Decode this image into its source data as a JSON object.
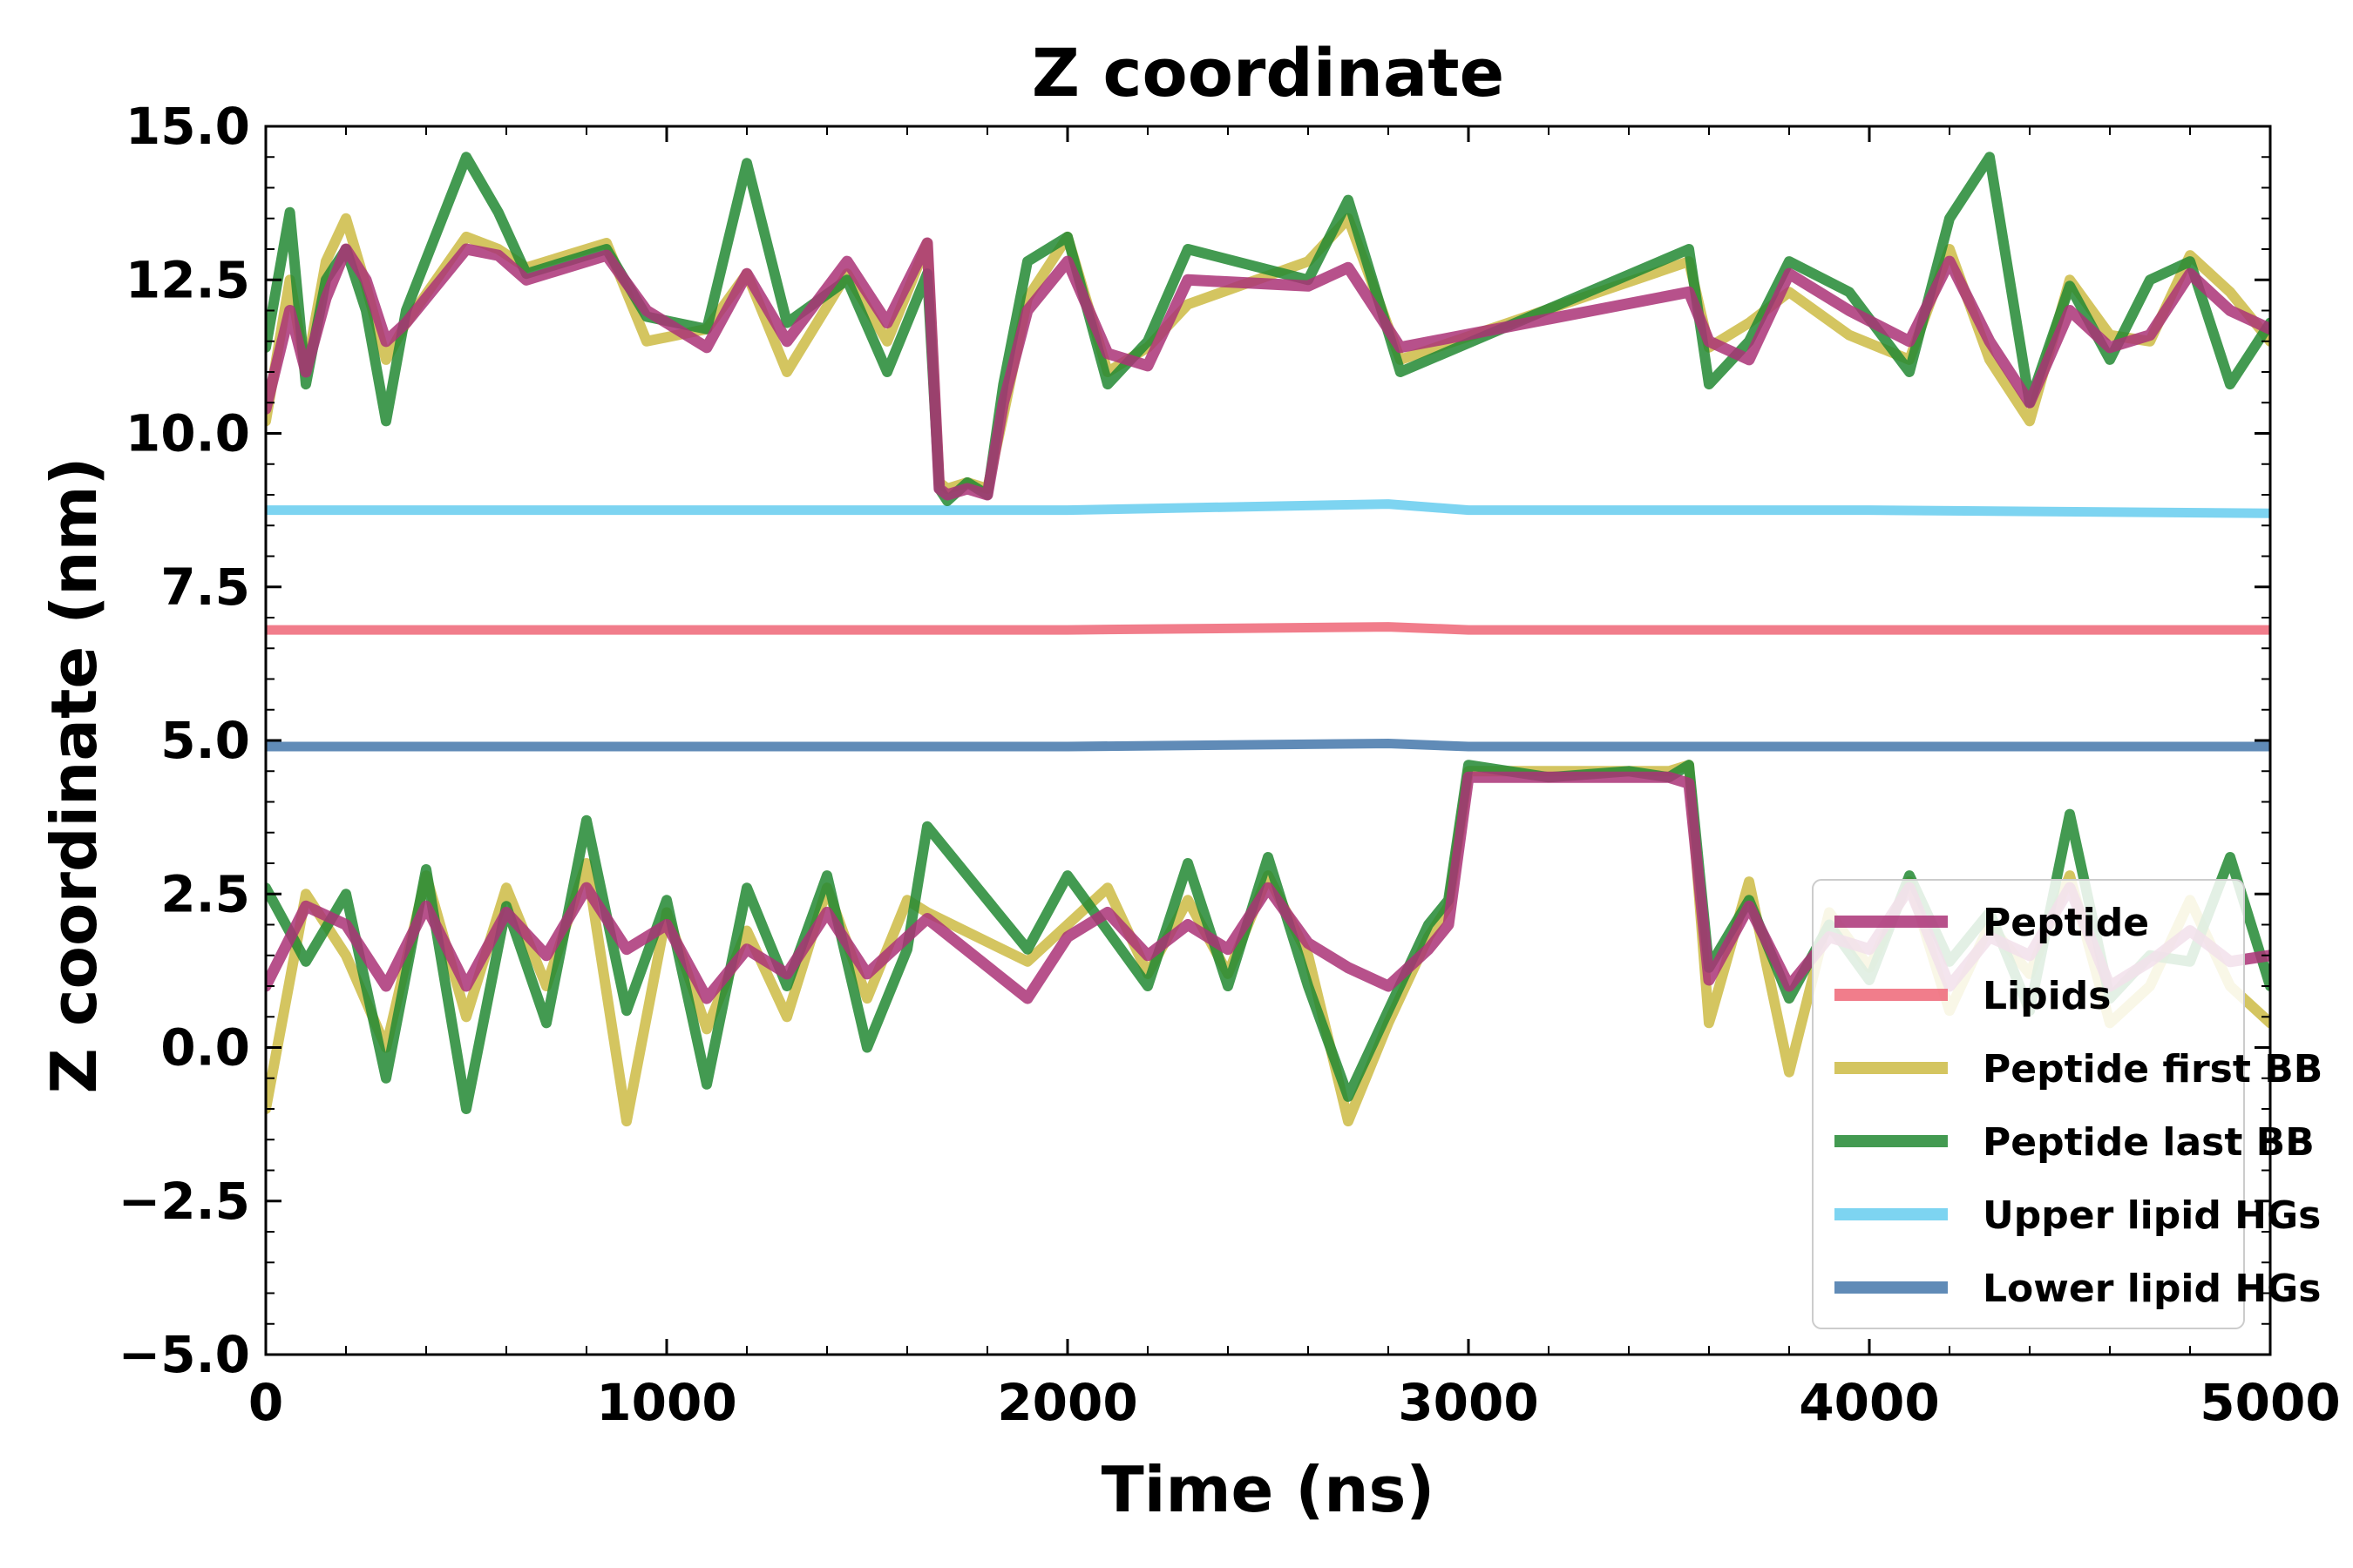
{
  "chart_data": {
    "type": "line",
    "title": "Z coordinate",
    "xlabel": "Time (ns)",
    "ylabel": "Z coordinate (nm)",
    "xlim": [
      0,
      5000
    ],
    "ylim": [
      -5.0,
      15.0
    ],
    "x_ticks": [
      0,
      1000,
      2000,
      3000,
      4000,
      5000
    ],
    "x_tick_labels": [
      "0",
      "1000",
      "2000",
      "3000",
      "4000",
      "5000"
    ],
    "y_ticks": [
      -5.0,
      -2.5,
      0.0,
      2.5,
      5.0,
      7.5,
      10.0,
      12.5,
      15.0
    ],
    "y_tick_labels": [
      "−5.0",
      "−2.5",
      "0.0",
      "2.5",
      "5.0",
      "7.5",
      "10.0",
      "12.5",
      "15.0"
    ],
    "grid": false,
    "legend_position": "lower-right",
    "series": [
      {
        "name": "Peptide",
        "color": "#aa3377",
        "points": [
          [
            0,
            10.4
          ],
          [
            60,
            12.0
          ],
          [
            100,
            11.0
          ],
          [
            150,
            12.2
          ],
          [
            200,
            13.0
          ],
          [
            250,
            12.5
          ],
          [
            300,
            11.5
          ],
          [
            350,
            11.8
          ],
          [
            500,
            13.0
          ],
          [
            580,
            12.9
          ],
          [
            650,
            12.5
          ],
          [
            850,
            12.9
          ],
          [
            950,
            12.0
          ],
          [
            1100,
            11.4
          ],
          [
            1200,
            12.6
          ],
          [
            1300,
            11.5
          ],
          [
            1450,
            12.8
          ],
          [
            1550,
            11.8
          ],
          [
            1650,
            13.1
          ],
          [
            1680,
            9.1
          ],
          [
            1700,
            9.0
          ],
          [
            1750,
            9.1
          ],
          [
            1800,
            9.0
          ],
          [
            1840,
            10.5
          ],
          [
            1900,
            12.0
          ],
          [
            2000,
            12.8
          ],
          [
            2100,
            11.3
          ],
          [
            2200,
            11.1
          ],
          [
            2300,
            12.5
          ],
          [
            2600,
            12.4
          ],
          [
            2700,
            12.7
          ],
          [
            2830,
            11.4
          ],
          [
            3550,
            12.3
          ],
          [
            3600,
            11.5
          ],
          [
            3700,
            11.2
          ],
          [
            3800,
            12.6
          ],
          [
            3950,
            12.0
          ],
          [
            4100,
            11.5
          ],
          [
            4200,
            12.8
          ],
          [
            4300,
            11.5
          ],
          [
            4400,
            10.5
          ],
          [
            4500,
            12.0
          ],
          [
            4600,
            11.4
          ],
          [
            4700,
            11.6
          ],
          [
            4800,
            12.6
          ],
          [
            4900,
            12.0
          ],
          [
            5000,
            11.7
          ]
        ],
        "points_lower": [
          [
            0,
            1.0
          ],
          [
            100,
            2.3
          ],
          [
            200,
            2.0
          ],
          [
            300,
            1.0
          ],
          [
            400,
            2.3
          ],
          [
            500,
            1.0
          ],
          [
            600,
            2.2
          ],
          [
            700,
            1.5
          ],
          [
            800,
            2.6
          ],
          [
            900,
            1.6
          ],
          [
            1000,
            2.0
          ],
          [
            1100,
            0.8
          ],
          [
            1200,
            1.6
          ],
          [
            1300,
            1.2
          ],
          [
            1400,
            2.2
          ],
          [
            1500,
            1.2
          ],
          [
            1600,
            1.8
          ],
          [
            1650,
            2.1
          ],
          [
            1900,
            0.8
          ],
          [
            2000,
            1.8
          ],
          [
            2100,
            2.2
          ],
          [
            2200,
            1.5
          ],
          [
            2300,
            2.0
          ],
          [
            2400,
            1.6
          ],
          [
            2500,
            2.6
          ],
          [
            2600,
            1.7
          ],
          [
            2700,
            1.3
          ],
          [
            2800,
            1.0
          ],
          [
            2900,
            1.6
          ],
          [
            2950,
            2.0
          ],
          [
            3000,
            4.4
          ],
          [
            3200,
            4.4
          ],
          [
            3400,
            4.4
          ],
          [
            3500,
            4.4
          ],
          [
            3550,
            4.3
          ],
          [
            3600,
            1.1
          ],
          [
            3700,
            2.3
          ],
          [
            3800,
            1.0
          ],
          [
            3900,
            1.8
          ],
          [
            4000,
            1.6
          ],
          [
            4100,
            2.6
          ],
          [
            4200,
            1.0
          ],
          [
            4300,
            1.8
          ],
          [
            4400,
            1.5
          ],
          [
            4500,
            2.6
          ],
          [
            4600,
            1.0
          ],
          [
            4700,
            1.4
          ],
          [
            4800,
            1.9
          ],
          [
            4900,
            1.4
          ],
          [
            5000,
            1.5
          ]
        ]
      },
      {
        "name": "Lipids",
        "color": "#ee6677",
        "points": [
          [
            0,
            6.8
          ],
          [
            1000,
            6.8
          ],
          [
            2000,
            6.8
          ],
          [
            2800,
            6.85
          ],
          [
            3000,
            6.8
          ],
          [
            4000,
            6.8
          ],
          [
            5000,
            6.8
          ]
        ]
      },
      {
        "name": "Peptide first BB",
        "color": "#ccbb44",
        "points": [
          [
            0,
            10.2
          ],
          [
            60,
            12.5
          ],
          [
            100,
            11.0
          ],
          [
            150,
            12.8
          ],
          [
            200,
            13.5
          ],
          [
            250,
            12.4
          ],
          [
            300,
            11.2
          ],
          [
            350,
            11.8
          ],
          [
            500,
            13.2
          ],
          [
            580,
            13.0
          ],
          [
            650,
            12.7
          ],
          [
            850,
            13.1
          ],
          [
            950,
            11.5
          ],
          [
            1100,
            11.7
          ],
          [
            1200,
            12.6
          ],
          [
            1300,
            11.0
          ],
          [
            1450,
            12.6
          ],
          [
            1550,
            11.5
          ],
          [
            1650,
            13.1
          ],
          [
            1680,
            9.2
          ],
          [
            1700,
            9.1
          ],
          [
            1750,
            9.2
          ],
          [
            1800,
            9.1
          ],
          [
            1840,
            10.3
          ],
          [
            1900,
            12.2
          ],
          [
            2000,
            13.2
          ],
          [
            2100,
            11.0
          ],
          [
            2200,
            11.4
          ],
          [
            2300,
            12.1
          ],
          [
            2600,
            12.8
          ],
          [
            2700,
            13.5
          ],
          [
            2830,
            11.2
          ],
          [
            3550,
            12.8
          ],
          [
            3600,
            11.4
          ],
          [
            3700,
            11.8
          ],
          [
            3800,
            12.3
          ],
          [
            3950,
            11.6
          ],
          [
            4100,
            11.2
          ],
          [
            4200,
            13.0
          ],
          [
            4300,
            11.2
          ],
          [
            4400,
            10.2
          ],
          [
            4500,
            12.5
          ],
          [
            4600,
            11.6
          ],
          [
            4700,
            11.5
          ],
          [
            4800,
            12.9
          ],
          [
            4900,
            12.3
          ],
          [
            5000,
            11.5
          ]
        ],
        "points_lower": [
          [
            0,
            -1.0
          ],
          [
            100,
            2.5
          ],
          [
            200,
            1.5
          ],
          [
            300,
            0.0
          ],
          [
            400,
            2.8
          ],
          [
            500,
            0.5
          ],
          [
            600,
            2.6
          ],
          [
            700,
            1.0
          ],
          [
            800,
            3.0
          ],
          [
            900,
            -1.2
          ],
          [
            1000,
            2.2
          ],
          [
            1100,
            0.3
          ],
          [
            1200,
            1.9
          ],
          [
            1300,
            0.5
          ],
          [
            1400,
            2.6
          ],
          [
            1500,
            0.8
          ],
          [
            1600,
            2.4
          ],
          [
            1650,
            2.2
          ],
          [
            1900,
            1.4
          ],
          [
            2000,
            2.0
          ],
          [
            2100,
            2.6
          ],
          [
            2200,
            1.2
          ],
          [
            2300,
            2.4
          ],
          [
            2400,
            1.2
          ],
          [
            2500,
            2.8
          ],
          [
            2600,
            1.5
          ],
          [
            2700,
            -1.2
          ],
          [
            2800,
            0.4
          ],
          [
            2900,
            1.8
          ],
          [
            2950,
            2.3
          ],
          [
            3000,
            4.5
          ],
          [
            3200,
            4.5
          ],
          [
            3400,
            4.5
          ],
          [
            3500,
            4.5
          ],
          [
            3550,
            4.6
          ],
          [
            3600,
            0.4
          ],
          [
            3700,
            2.7
          ],
          [
            3800,
            -0.4
          ],
          [
            3900,
            2.2
          ],
          [
            4000,
            1.3
          ],
          [
            4100,
            2.7
          ],
          [
            4200,
            0.6
          ],
          [
            4300,
            2.0
          ],
          [
            4400,
            1.2
          ],
          [
            4500,
            2.8
          ],
          [
            4600,
            0.4
          ],
          [
            4700,
            1.0
          ],
          [
            4800,
            2.4
          ],
          [
            4900,
            1.0
          ],
          [
            5000,
            0.4
          ]
        ]
      },
      {
        "name": "Peptide last BB",
        "color": "#228833",
        "points": [
          [
            0,
            11.4
          ],
          [
            60,
            13.6
          ],
          [
            100,
            10.8
          ],
          [
            150,
            12.5
          ],
          [
            200,
            13.0
          ],
          [
            250,
            12.0
          ],
          [
            300,
            10.2
          ],
          [
            350,
            12.0
          ],
          [
            500,
            14.5
          ],
          [
            580,
            13.6
          ],
          [
            650,
            12.6
          ],
          [
            850,
            13.0
          ],
          [
            950,
            11.9
          ],
          [
            1100,
            11.7
          ],
          [
            1200,
            14.4
          ],
          [
            1300,
            11.8
          ],
          [
            1450,
            12.5
          ],
          [
            1550,
            11.0
          ],
          [
            1650,
            12.6
          ],
          [
            1680,
            9.1
          ],
          [
            1700,
            8.9
          ],
          [
            1750,
            9.2
          ],
          [
            1800,
            9.0
          ],
          [
            1840,
            10.8
          ],
          [
            1900,
            12.8
          ],
          [
            2000,
            13.2
          ],
          [
            2100,
            10.8
          ],
          [
            2200,
            11.5
          ],
          [
            2300,
            13.0
          ],
          [
            2600,
            12.5
          ],
          [
            2700,
            13.8
          ],
          [
            2830,
            11.0
          ],
          [
            3550,
            13.0
          ],
          [
            3600,
            10.8
          ],
          [
            3700,
            11.5
          ],
          [
            3800,
            12.8
          ],
          [
            3950,
            12.3
          ],
          [
            4100,
            11.0
          ],
          [
            4200,
            13.5
          ],
          [
            4300,
            14.5
          ],
          [
            4400,
            10.5
          ],
          [
            4500,
            12.4
          ],
          [
            4600,
            11.2
          ],
          [
            4700,
            12.5
          ],
          [
            4800,
            12.8
          ],
          [
            4900,
            10.8
          ],
          [
            5000,
            11.8
          ]
        ],
        "points_lower": [
          [
            0,
            2.6
          ],
          [
            100,
            1.4
          ],
          [
            200,
            2.5
          ],
          [
            300,
            -0.5
          ],
          [
            400,
            2.9
          ],
          [
            500,
            -1.0
          ],
          [
            600,
            2.3
          ],
          [
            700,
            0.4
          ],
          [
            800,
            3.7
          ],
          [
            900,
            0.6
          ],
          [
            1000,
            2.4
          ],
          [
            1100,
            -0.6
          ],
          [
            1200,
            2.6
          ],
          [
            1300,
            1.0
          ],
          [
            1400,
            2.8
          ],
          [
            1500,
            0.0
          ],
          [
            1600,
            1.6
          ],
          [
            1650,
            3.6
          ],
          [
            1900,
            1.6
          ],
          [
            2000,
            2.8
          ],
          [
            2100,
            1.9
          ],
          [
            2200,
            1.0
          ],
          [
            2300,
            3.0
          ],
          [
            2400,
            1.0
          ],
          [
            2500,
            3.1
          ],
          [
            2600,
            1.0
          ],
          [
            2700,
            -0.8
          ],
          [
            2800,
            0.6
          ],
          [
            2900,
            2.0
          ],
          [
            2950,
            2.4
          ],
          [
            3000,
            4.6
          ],
          [
            3200,
            4.4
          ],
          [
            3400,
            4.5
          ],
          [
            3500,
            4.4
          ],
          [
            3550,
            4.6
          ],
          [
            3600,
            1.3
          ],
          [
            3700,
            2.4
          ],
          [
            3800,
            0.8
          ],
          [
            3900,
            2.0
          ],
          [
            4000,
            1.1
          ],
          [
            4100,
            2.8
          ],
          [
            4200,
            1.4
          ],
          [
            4300,
            2.2
          ],
          [
            4400,
            0.6
          ],
          [
            4500,
            3.8
          ],
          [
            4600,
            0.8
          ],
          [
            4700,
            1.5
          ],
          [
            4800,
            1.4
          ],
          [
            4900,
            3.1
          ],
          [
            5000,
            1.0
          ]
        ]
      },
      {
        "name": "Upper lipid HGs",
        "color": "#66ccee",
        "points": [
          [
            0,
            8.75
          ],
          [
            1000,
            8.75
          ],
          [
            2000,
            8.75
          ],
          [
            2800,
            8.85
          ],
          [
            3000,
            8.75
          ],
          [
            4000,
            8.75
          ],
          [
            5000,
            8.7
          ]
        ]
      },
      {
        "name": "Lower lipid HGs",
        "color": "#4477aa",
        "points": [
          [
            0,
            4.9
          ],
          [
            1000,
            4.9
          ],
          [
            2000,
            4.9
          ],
          [
            2800,
            4.95
          ],
          [
            3000,
            4.9
          ],
          [
            4000,
            4.9
          ],
          [
            5000,
            4.9
          ]
        ]
      }
    ]
  }
}
